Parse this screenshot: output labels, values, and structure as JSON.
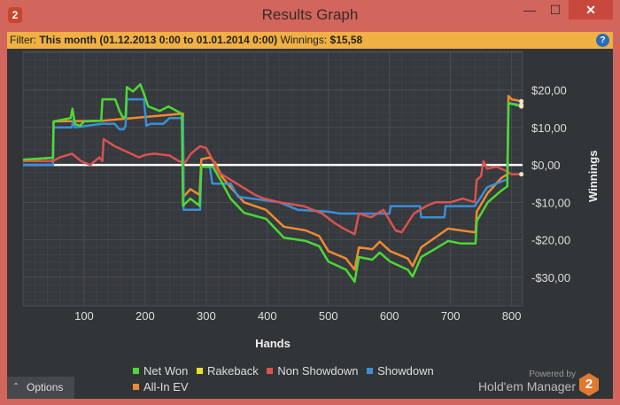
{
  "window": {
    "title": "Results Graph",
    "app_icon": "2",
    "minimize_icon": "minimize-icon",
    "maximize_icon": "maximize-icon",
    "close_icon": "close-icon"
  },
  "filter": {
    "label": "Filter:",
    "value": "This month (01.12.2013 0:00 to 01.01.2014 0:00)",
    "winnings_label": "Winnings:",
    "winnings_value": "$15,58",
    "help": "?"
  },
  "options_label": "Options",
  "branding": {
    "powered": "Powered by",
    "product": "Hold'em Manager",
    "logo": "2"
  },
  "chart_data": {
    "type": "line",
    "xlabel": "Hands",
    "ylabel": "Winnings",
    "xlim": [
      0,
      818
    ],
    "ylim": [
      -37.6,
      30.3
    ],
    "xticks": [
      100,
      200,
      300,
      400,
      500,
      600,
      700,
      800
    ],
    "xtick_labels": [
      "100",
      "200",
      "300",
      "400",
      "500",
      "600",
      "700",
      "800"
    ],
    "yticks": [
      20,
      10,
      0,
      -10,
      -20,
      -30
    ],
    "ytick_labels": [
      "$20,00",
      "$10,00",
      "$0,00",
      "-$10,00",
      "-$20,00",
      "-$30,00"
    ],
    "grid": true,
    "legend": "bottom",
    "zero_line": true,
    "series": [
      {
        "name": "Net Won",
        "color": "#4cd935",
        "points": [
          [
            0,
            1.4
          ],
          [
            49,
            1.9
          ],
          [
            50,
            11.6
          ],
          [
            78,
            12.5
          ],
          [
            81,
            15
          ],
          [
            85,
            11
          ],
          [
            93,
            10.4
          ],
          [
            100,
            11.6
          ],
          [
            128,
            11.8
          ],
          [
            130,
            17.5
          ],
          [
            151,
            17.5
          ],
          [
            158,
            14.4
          ],
          [
            163,
            12.8
          ],
          [
            168,
            12.8
          ],
          [
            170,
            20.8
          ],
          [
            180,
            19.6
          ],
          [
            192,
            21.5
          ],
          [
            198,
            19
          ],
          [
            205,
            15.6
          ],
          [
            224,
            14.4
          ],
          [
            238,
            15.6
          ],
          [
            260,
            13.7
          ],
          [
            262,
            -10.9
          ],
          [
            274,
            -9
          ],
          [
            289,
            -10.9
          ],
          [
            292,
            -0.5
          ],
          [
            311,
            -0.5
          ],
          [
            325,
            -4.5
          ],
          [
            340,
            -9
          ],
          [
            362,
            -12.8
          ],
          [
            398,
            -14.4
          ],
          [
            427,
            -19.4
          ],
          [
            463,
            -20.3
          ],
          [
            485,
            -21.7
          ],
          [
            500,
            -25.8
          ],
          [
            529,
            -28
          ],
          [
            543,
            -31.2
          ],
          [
            550,
            -24.6
          ],
          [
            572,
            -25.3
          ],
          [
            584,
            -23.4
          ],
          [
            601,
            -25.8
          ],
          [
            630,
            -28
          ],
          [
            638,
            -29.8
          ],
          [
            652,
            -24.6
          ],
          [
            674,
            -22.5
          ],
          [
            696,
            -20.3
          ],
          [
            717,
            -21
          ],
          [
            741,
            -21
          ],
          [
            743,
            -15
          ],
          [
            761,
            -10
          ],
          [
            783,
            -6.9
          ],
          [
            793,
            -5.7
          ],
          [
            795,
            16.5
          ],
          [
            816,
            15.6
          ]
        ]
      },
      {
        "name": "Rakeback",
        "color": "#e8e030",
        "points": []
      },
      {
        "name": "Non Showdown",
        "color": "#d9534f",
        "points": [
          [
            0,
            1
          ],
          [
            49,
            1
          ],
          [
            60,
            2
          ],
          [
            80,
            3
          ],
          [
            95,
            1
          ],
          [
            110,
            0
          ],
          [
            125,
            2
          ],
          [
            130,
            1
          ],
          [
            132,
            6.9
          ],
          [
            150,
            5
          ],
          [
            170,
            3.5
          ],
          [
            190,
            2
          ],
          [
            200,
            2.7
          ],
          [
            215,
            3
          ],
          [
            240,
            2.5
          ],
          [
            255,
            1
          ],
          [
            265,
            0.5
          ],
          [
            275,
            3
          ],
          [
            290,
            5
          ],
          [
            300,
            4.5
          ],
          [
            310,
            1.5
          ],
          [
            320,
            -2
          ],
          [
            340,
            -4
          ],
          [
            360,
            -6
          ],
          [
            380,
            -8
          ],
          [
            395,
            -9
          ],
          [
            420,
            -10
          ],
          [
            440,
            -10.5
          ],
          [
            460,
            -11
          ],
          [
            490,
            -13
          ],
          [
            510,
            -15.5
          ],
          [
            525,
            -17
          ],
          [
            543,
            -18.5
          ],
          [
            550,
            -13
          ],
          [
            570,
            -14
          ],
          [
            590,
            -12
          ],
          [
            610,
            -17.5
          ],
          [
            620,
            -18
          ],
          [
            640,
            -13
          ],
          [
            660,
            -11
          ],
          [
            675,
            -10
          ],
          [
            700,
            -10
          ],
          [
            720,
            -9
          ],
          [
            740,
            -10
          ],
          [
            743,
            -4
          ],
          [
            750,
            -3
          ],
          [
            754,
            1
          ],
          [
            760,
            -1
          ],
          [
            775,
            -0.5
          ],
          [
            790,
            -1.5
          ],
          [
            800,
            -2.5
          ],
          [
            816,
            -2.5
          ]
        ]
      },
      {
        "name": "Showdown",
        "color": "#3a8fd8",
        "points": [
          [
            0,
            0
          ],
          [
            49,
            0
          ],
          [
            50,
            10
          ],
          [
            80,
            10
          ],
          [
            82,
            12
          ],
          [
            85,
            10
          ],
          [
            130,
            11
          ],
          [
            150,
            11
          ],
          [
            158,
            9.5
          ],
          [
            165,
            9.5
          ],
          [
            168,
            10.5
          ],
          [
            170,
            17.5
          ],
          [
            198,
            17.5
          ],
          [
            202,
            10.5
          ],
          [
            210,
            11
          ],
          [
            230,
            11
          ],
          [
            240,
            12.5
          ],
          [
            262,
            12.5
          ],
          [
            263,
            -12
          ],
          [
            290,
            -12
          ],
          [
            292,
            -0.5
          ],
          [
            306,
            -0.5
          ],
          [
            310,
            -5
          ],
          [
            340,
            -5
          ],
          [
            352,
            -8.5
          ],
          [
            420,
            -10
          ],
          [
            450,
            -12
          ],
          [
            500,
            -12.5
          ],
          [
            520,
            -13
          ],
          [
            600,
            -13
          ],
          [
            602,
            -11
          ],
          [
            650,
            -11
          ],
          [
            652,
            -14
          ],
          [
            690,
            -14
          ],
          [
            692,
            -11
          ],
          [
            740,
            -11
          ],
          [
            760,
            -6
          ],
          [
            790,
            -4
          ],
          [
            793,
            -4
          ],
          [
            795,
            16.5
          ],
          [
            816,
            16
          ]
        ]
      },
      {
        "name": "All-In EV",
        "color": "#f08a30",
        "points": [
          [
            0,
            1.4
          ],
          [
            49,
            1.9
          ],
          [
            50,
            11.6
          ],
          [
            130,
            11.8
          ],
          [
            262,
            13.7
          ],
          [
            263,
            -8.5
          ],
          [
            274,
            -6.5
          ],
          [
            289,
            -8
          ],
          [
            292,
            1.5
          ],
          [
            306,
            2
          ],
          [
            315,
            0.5
          ],
          [
            325,
            -3
          ],
          [
            340,
            -6
          ],
          [
            362,
            -10
          ],
          [
            398,
            -12
          ],
          [
            427,
            -16.5
          ],
          [
            463,
            -17.5
          ],
          [
            485,
            -19
          ],
          [
            500,
            -23
          ],
          [
            529,
            -25
          ],
          [
            543,
            -28
          ],
          [
            550,
            -22
          ],
          [
            572,
            -22.5
          ],
          [
            584,
            -20.5
          ],
          [
            601,
            -23
          ],
          [
            630,
            -25
          ],
          [
            638,
            -27
          ],
          [
            652,
            -22
          ],
          [
            674,
            -19.5
          ],
          [
            696,
            -17
          ],
          [
            717,
            -17.5
          ],
          [
            741,
            -18
          ],
          [
            743,
            -12.5
          ],
          [
            761,
            -7.5
          ],
          [
            783,
            -3.5
          ],
          [
            793,
            -2.5
          ],
          [
            795,
            18.4
          ],
          [
            800,
            17.5
          ],
          [
            816,
            17
          ]
        ]
      }
    ],
    "draw_order": [
      4,
      3,
      2,
      0
    ]
  }
}
